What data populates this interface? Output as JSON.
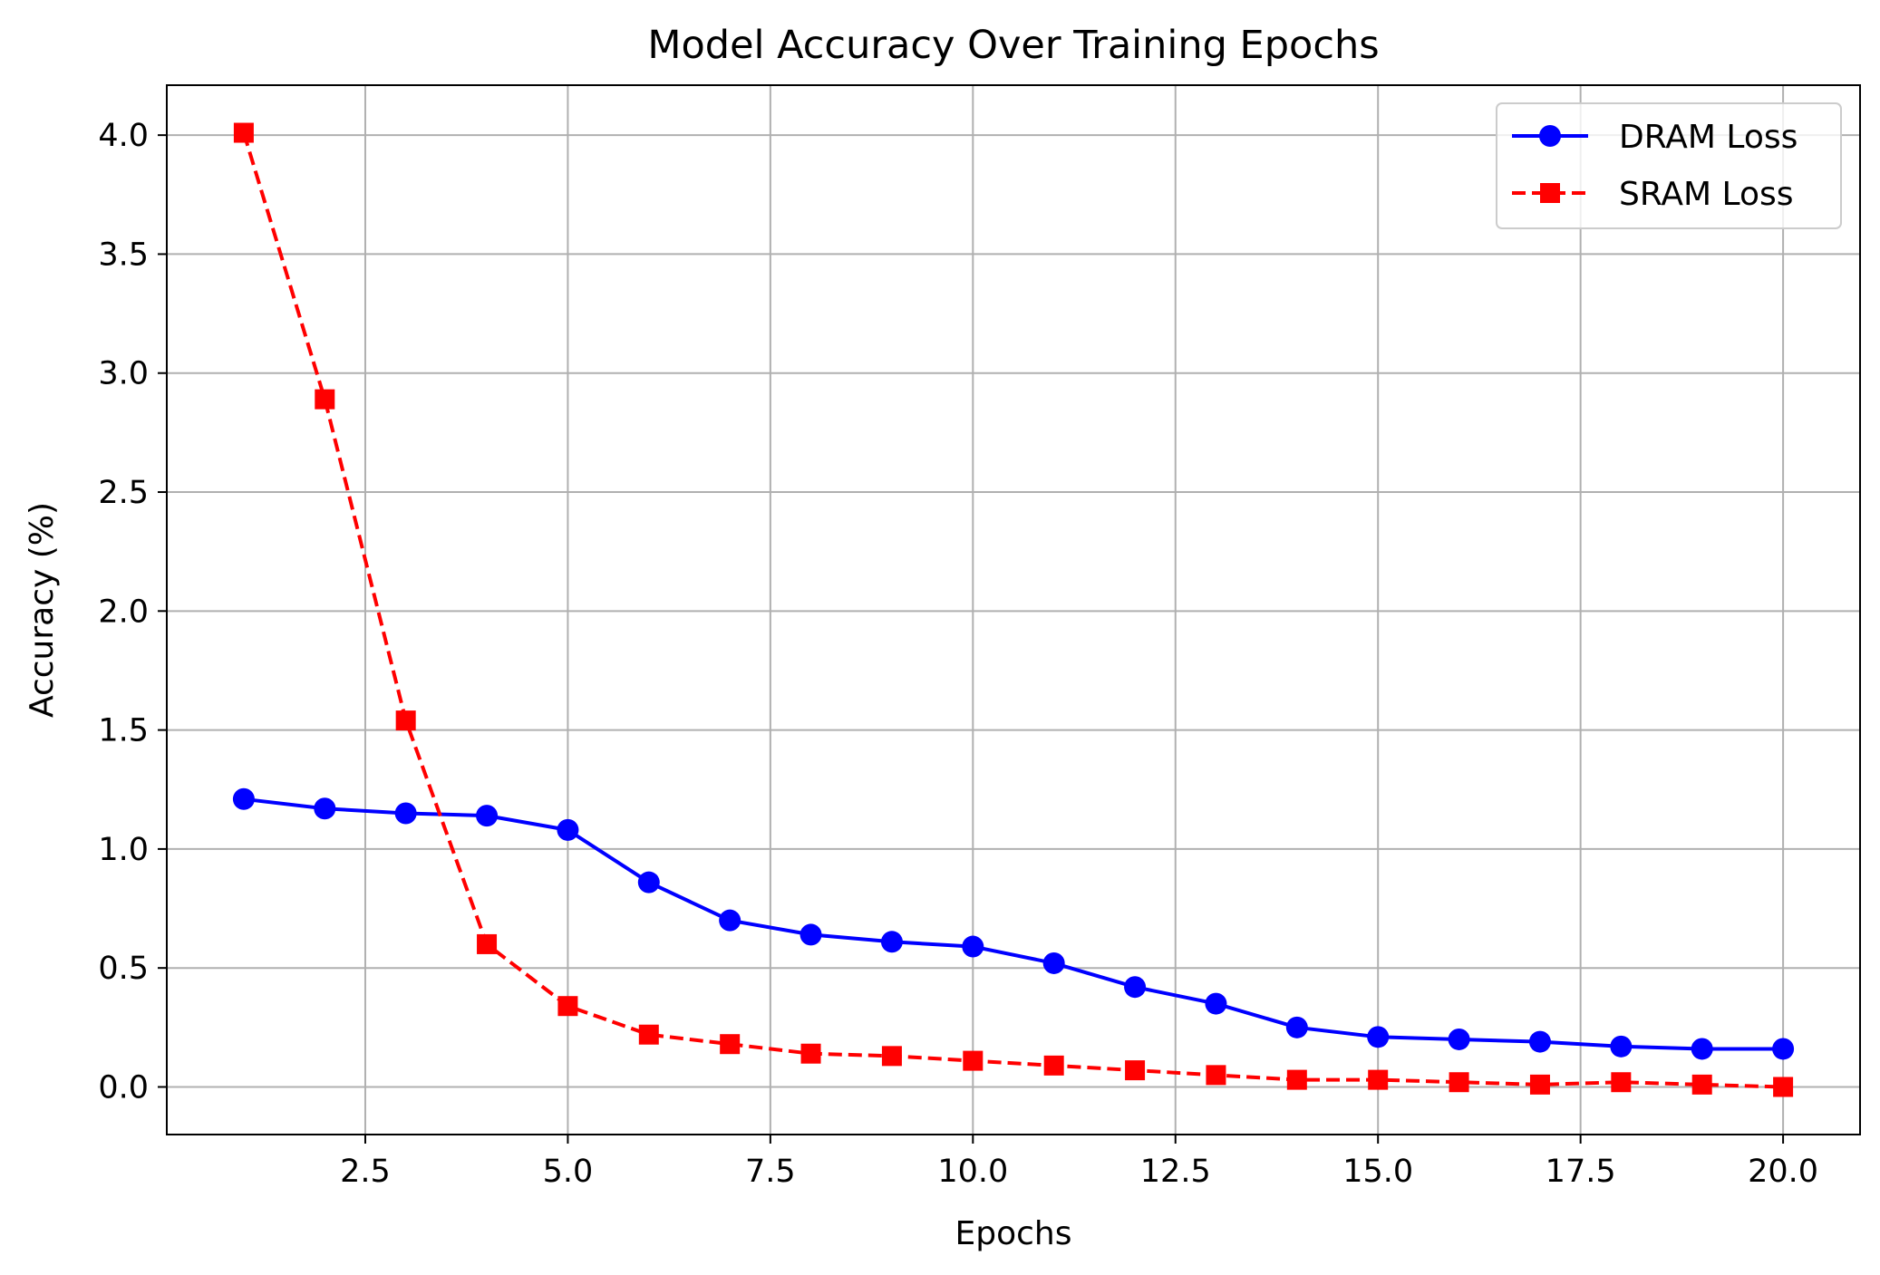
{
  "chart_data": {
    "type": "line",
    "title": "Model Accuracy Over Training Epochs",
    "xlabel": "Epochs",
    "ylabel": "Accuracy (%)",
    "x": [
      1,
      2,
      3,
      4,
      5,
      6,
      7,
      8,
      9,
      10,
      11,
      12,
      13,
      14,
      15,
      16,
      17,
      18,
      19,
      20
    ],
    "series": [
      {
        "name": "DRAM Loss",
        "color": "#0000ff",
        "line_style": "solid",
        "marker": "circle",
        "values": [
          1.21,
          1.17,
          1.15,
          1.14,
          1.08,
          0.86,
          0.7,
          0.64,
          0.61,
          0.59,
          0.52,
          0.42,
          0.35,
          0.25,
          0.21,
          0.2,
          0.19,
          0.17,
          0.16,
          0.16
        ]
      },
      {
        "name": "SRAM Loss",
        "color": "#ff0000",
        "line_style": "dashed",
        "marker": "square",
        "values": [
          4.01,
          2.89,
          1.54,
          0.6,
          0.34,
          0.22,
          0.18,
          0.14,
          0.13,
          0.11,
          0.09,
          0.07,
          0.05,
          0.03,
          0.03,
          0.02,
          0.01,
          0.02,
          0.01,
          0.0
        ]
      }
    ],
    "xticks": [
      "2.5",
      "5.0",
      "7.5",
      "10.0",
      "12.5",
      "15.0",
      "17.5",
      "20.0"
    ],
    "xtick_values": [
      2.5,
      5.0,
      7.5,
      10.0,
      12.5,
      15.0,
      17.5,
      20.0
    ],
    "yticks": [
      "0.0",
      "0.5",
      "1.0",
      "1.5",
      "2.0",
      "2.5",
      "3.0",
      "3.5",
      "4.0"
    ],
    "ytick_values": [
      0.0,
      0.5,
      1.0,
      1.5,
      2.0,
      2.5,
      3.0,
      3.5,
      4.0
    ],
    "xlim": [
      0.05,
      20.95
    ],
    "ylim": [
      -0.2,
      4.21
    ],
    "grid": true,
    "legend_position": "top-right"
  }
}
